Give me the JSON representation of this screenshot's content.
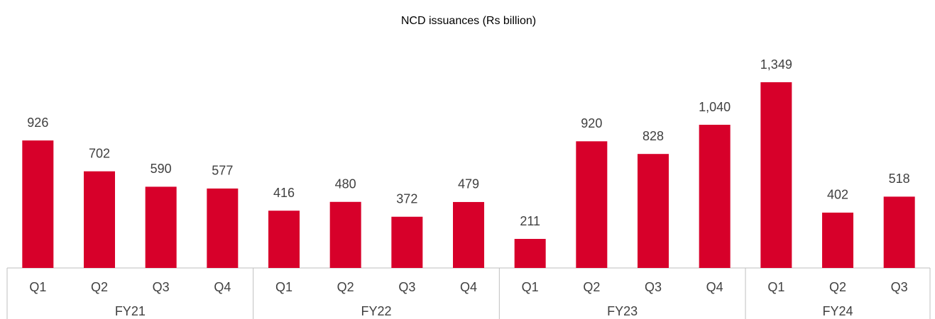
{
  "chart_data": {
    "type": "bar",
    "title": "NCD issuances (Rs billion)",
    "color": "#d7002a",
    "groups": [
      {
        "name": "FY21",
        "categories": [
          "Q1",
          "Q2",
          "Q3",
          "Q4"
        ],
        "values": [
          926,
          702,
          590,
          577
        ]
      },
      {
        "name": "FY22",
        "categories": [
          "Q1",
          "Q2",
          "Q3",
          "Q4"
        ],
        "values": [
          416,
          480,
          372,
          479
        ]
      },
      {
        "name": "FY23",
        "categories": [
          "Q1",
          "Q2",
          "Q3",
          "Q4"
        ],
        "values": [
          211,
          920,
          828,
          1040
        ],
        "value_labels": [
          null,
          null,
          null,
          "1,040"
        ]
      },
      {
        "name": "FY24",
        "categories": [
          "Q1",
          "Q2",
          "Q3"
        ],
        "values": [
          1349,
          402,
          518
        ],
        "value_labels": [
          "1,349",
          null,
          null
        ]
      }
    ]
  }
}
